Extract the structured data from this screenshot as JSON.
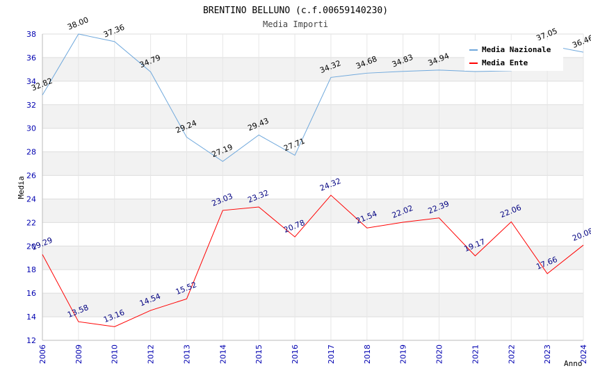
{
  "chart_data": {
    "type": "line",
    "title": "BRENTINO BELLUNO (c.f.00659140230)",
    "subtitle": "Media Importi",
    "xlabel": "Anno",
    "ylabel": "Media",
    "ylim": [
      12,
      38
    ],
    "yticks": [
      "12",
      "14",
      "16",
      "18",
      "20",
      "22",
      "24",
      "26",
      "28",
      "30",
      "32",
      "34",
      "36",
      "38"
    ],
    "categories": [
      "2006",
      "2009",
      "2010",
      "2012",
      "2013",
      "2014",
      "2015",
      "2016",
      "2017",
      "2018",
      "2019",
      "2020",
      "2021",
      "2022",
      "2023",
      "2024"
    ],
    "series": [
      {
        "name": "Media Nazionale",
        "color": "#6fa8dc",
        "values": [
          32.82,
          38.0,
          37.36,
          34.79,
          29.24,
          27.19,
          29.43,
          27.71,
          34.32,
          34.68,
          34.83,
          34.94,
          34.82,
          34.88,
          37.05,
          36.46
        ],
        "labels": [
          "32.82",
          "38.00",
          "37.36",
          "34.79",
          "29.24",
          "27.19",
          "29.43",
          "27.71",
          "34.32",
          "34.68",
          "34.83",
          "34.94",
          "",
          "",
          "37.05",
          "36.46"
        ]
      },
      {
        "name": "Media Ente",
        "color": "#ff0000",
        "values": [
          19.29,
          13.58,
          13.16,
          14.54,
          15.52,
          23.03,
          23.32,
          20.78,
          24.32,
          21.54,
          22.02,
          22.39,
          19.17,
          22.06,
          17.66,
          20.08
        ],
        "labels": [
          "19.29",
          "13.58",
          "13.16",
          "14.54",
          "15.52",
          "23.03",
          "23.32",
          "20.78",
          "24.32",
          "21.54",
          "22.02",
          "22.39",
          "19.17",
          "22.06",
          "17.66",
          "20.08"
        ]
      }
    ],
    "grid": true,
    "legend": "top-right"
  }
}
